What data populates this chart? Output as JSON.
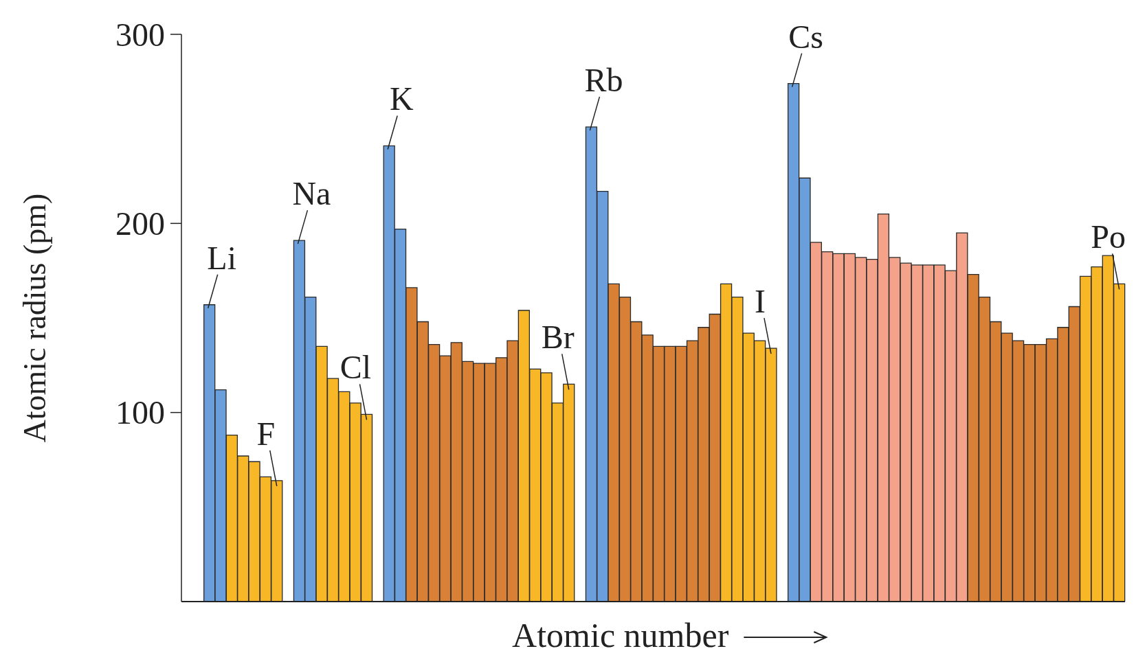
{
  "chart_data": {
    "type": "bar",
    "ylabel": "Atomic radius (pm)",
    "xlabel": "Atomic number",
    "categories": [
      null,
      null,
      null,
      null,
      null,
      null,
      null,
      null,
      null,
      null,
      null,
      null,
      null,
      null,
      null,
      null,
      null,
      null,
      null,
      null,
      null,
      null,
      null,
      null,
      null,
      null,
      null,
      null,
      null,
      null,
      null,
      null,
      null,
      null,
      null,
      null,
      null,
      null,
      null,
      null,
      null,
      null,
      null,
      null,
      null,
      null,
      null,
      null,
      null,
      null,
      null,
      null,
      null,
      null,
      null,
      null,
      null,
      null,
      null,
      null,
      null,
      null,
      null,
      null,
      null,
      null,
      null,
      null,
      null,
      null,
      null,
      null,
      null,
      null,
      null,
      null,
      null,
      null,
      null,
      null,
      null,
      null,
      null,
      null
    ],
    "values": [
      null,
      null,
      157,
      112,
      88,
      77,
      74,
      66,
      64,
      null,
      191,
      161,
      135,
      118,
      111,
      105,
      99,
      null,
      241,
      197,
      166,
      148,
      136,
      130,
      137,
      127,
      126,
      126,
      129,
      138,
      154,
      123,
      121,
      105,
      115,
      null,
      251,
      217,
      168,
      161,
      148,
      141,
      135,
      135,
      135,
      138,
      145,
      152,
      168,
      161,
      142,
      138,
      134,
      null,
      274,
      224,
      190,
      185,
      184,
      184,
      182,
      181,
      205,
      182,
      179,
      178,
      178,
      178,
      175,
      195,
      173,
      161,
      148,
      142,
      138,
      136,
      136,
      139,
      145,
      156,
      172,
      177,
      183,
      168
    ],
    "colors": [
      null,
      null,
      "#6a9fdc",
      "#6a9fdc",
      "#f8b726",
      "#f8b726",
      "#f8b726",
      "#f8b726",
      "#f8b726",
      null,
      "#6a9fdc",
      "#6a9fdc",
      "#f8b726",
      "#f8b726",
      "#f8b726",
      "#f8b726",
      "#f8b726",
      null,
      "#6a9fdc",
      "#6a9fdc",
      "#d98037",
      "#d98037",
      "#d98037",
      "#d98037",
      "#d98037",
      "#d98037",
      "#d98037",
      "#d98037",
      "#d98037",
      "#d98037",
      "#f8b726",
      "#f8b726",
      "#f8b726",
      "#f8b726",
      "#f8b726",
      null,
      "#6a9fdc",
      "#6a9fdc",
      "#d98037",
      "#d98037",
      "#d98037",
      "#d98037",
      "#d98037",
      "#d98037",
      "#d98037",
      "#d98037",
      "#d98037",
      "#d98037",
      "#f8b726",
      "#f8b726",
      "#f8b726",
      "#f8b726",
      "#f8b726",
      null,
      "#6a9fdc",
      "#6a9fdc",
      "#f4a28a",
      "#f4a28a",
      "#f4a28a",
      "#f4a28a",
      "#f4a28a",
      "#f4a28a",
      "#f4a28a",
      "#f4a28a",
      "#f4a28a",
      "#f4a28a",
      "#f4a28a",
      "#f4a28a",
      "#f4a28a",
      "#f4a28a",
      "#d98037",
      "#d98037",
      "#d98037",
      "#d98037",
      "#d98037",
      "#d98037",
      "#d98037",
      "#d98037",
      "#d98037",
      "#d98037",
      "#f8b726",
      "#f8b726",
      "#f8b726",
      "#f8b726"
    ],
    "value_labels": [
      null,
      null,
      "Li",
      null,
      null,
      null,
      null,
      null,
      "F",
      null,
      "Na",
      null,
      null,
      null,
      null,
      null,
      "Cl",
      null,
      "K",
      null,
      null,
      null,
      null,
      null,
      null,
      null,
      null,
      null,
      null,
      null,
      null,
      null,
      null,
      null,
      "Br",
      null,
      "Rb",
      null,
      null,
      null,
      null,
      null,
      null,
      null,
      null,
      null,
      null,
      null,
      null,
      null,
      null,
      null,
      "I",
      null,
      "Cs",
      null,
      null,
      null,
      null,
      null,
      null,
      null,
      null,
      null,
      null,
      null,
      null,
      null,
      null,
      null,
      null,
      null,
      null,
      null,
      null,
      null,
      null,
      null,
      null,
      null,
      null,
      null,
      null,
      "Po"
    ],
    "ylim": [
      0,
      300
    ],
    "yticks": [
      100,
      200,
      300
    ],
    "grid": false,
    "legend": false
  }
}
